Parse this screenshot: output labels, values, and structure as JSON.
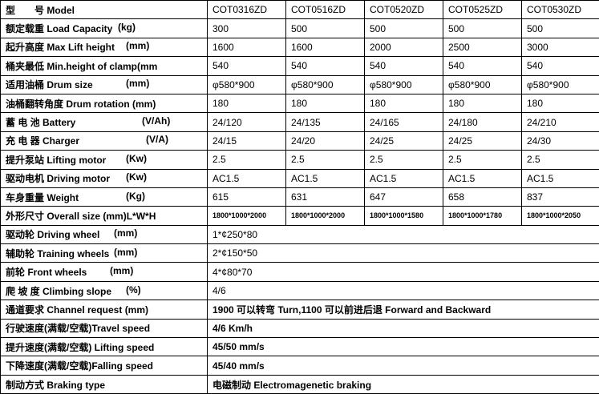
{
  "header": {
    "label": "型　　号 Model",
    "models": [
      "COT0316ZD",
      "COT0516ZD",
      "COT0520ZD",
      "COT0525ZD",
      "COT0530ZD"
    ]
  },
  "rows": [
    {
      "label": "额定载重 Load Capacity",
      "unit": "(kg)",
      "values": [
        "300",
        "500",
        "500",
        "500",
        "500"
      ]
    },
    {
      "label": "起升高度 Max Lift height",
      "unit": "(mm)",
      "values": [
        "1600",
        "1600",
        "2000",
        "2500",
        "3000"
      ]
    },
    {
      "label": "桶夹最低 Min.height of clamp(mm",
      "unit": "",
      "values": [
        "540",
        "540",
        "540",
        "540",
        "540"
      ]
    },
    {
      "label": "适用油桶 Drum size",
      "unit": "(mm)",
      "values": [
        "φ580*900",
        "φ580*900",
        "φ580*900",
        "φ580*900",
        "φ580*900"
      ]
    },
    {
      "label": "油桶翻转角度 Drum rotation (mm)",
      "unit": "",
      "values": [
        "180",
        "180",
        "180",
        "180",
        "180"
      ]
    },
    {
      "label": "蓄 电 池 Battery",
      "unit": "(V/Ah)",
      "values": [
        "24/120",
        "24/135",
        "24/165",
        "24/180",
        "24/210"
      ]
    },
    {
      "label": "充 电 器 Charger",
      "unit": "(V/A)",
      "values": [
        "24/15",
        "24/20",
        "24/25",
        "24/25",
        "24/30"
      ]
    },
    {
      "label": "提升泵站 Lifting motor",
      "unit": "(Kw)",
      "values": [
        "2.5",
        "2.5",
        "2.5",
        "2.5",
        "2.5"
      ]
    },
    {
      "label": "驱动电机 Driving motor",
      "unit": "(Kw)",
      "values": [
        "AC1.5",
        "AC1.5",
        "AC1.5",
        "AC1.5",
        "AC1.5"
      ]
    },
    {
      "label": "车身重量 Weight",
      "unit": "(Kg)",
      "values": [
        "615",
        "631",
        "647",
        "658",
        "837"
      ]
    },
    {
      "label": "外形尺寸 Overall size (mm)L*W*H",
      "unit": "",
      "values": [
        "1800*1000*2000",
        "1800*1000*2000",
        "1800*1000*1580",
        "1800*1000*1780",
        "1800*1000*2050"
      ]
    }
  ],
  "span_rows": [
    {
      "label": "驱动轮  Driving wheel",
      "unit": "(mm)",
      "value": "1*¢250*80"
    },
    {
      "label": "辅助轮  Training wheels",
      "unit": "(mm)",
      "value": "2*¢150*50"
    },
    {
      "label": "前轮 Front wheels",
      "unit": "(mm)",
      "value": "4*¢80*70"
    },
    {
      "label": "爬 坡 度 Climbing slope",
      "unit": "(%)",
      "value": "4/6"
    },
    {
      "label": "通道要求 Channel request (mm)",
      "unit": "",
      "value": "1900 可以转弯 Turn,1100 可以前进后退  Forward and Backward"
    },
    {
      "label": "行驶速度(满载/空载)Travel speed",
      "unit": "",
      "value": "4/6 Km/h"
    },
    {
      "label": "提升速度(满载/空载) Lifting speed",
      "unit": "",
      "value": "45/50 mm/s"
    },
    {
      "label": "下降速度(满载/空载)Falling speed",
      "unit": "",
      "value": "45/40 mm/s"
    },
    {
      "label": "制动方式 Braking type",
      "unit": "",
      "value": "电磁制动 Electromagenetic braking"
    }
  ]
}
